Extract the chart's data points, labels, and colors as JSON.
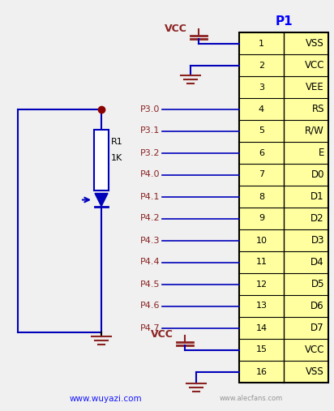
{
  "bg_color": "#f0f0f0",
  "wire_color": "#0000BB",
  "maroon": "#8B2222",
  "black": "#000000",
  "chip_fill": "#FFFFA0",
  "chip_border": "#000000",
  "chip_label": "P1",
  "pin_labels_left": [
    "P3.0",
    "P3.1",
    "P3.2",
    "P4.0",
    "P4.1",
    "P4.2",
    "P4.3",
    "P4.4",
    "P4.5",
    "P4.6",
    "P4.7"
  ],
  "pin_numbers": [
    1,
    2,
    3,
    4,
    5,
    6,
    7,
    8,
    9,
    10,
    11,
    12,
    13,
    14,
    15,
    16
  ],
  "pin_labels_right": [
    "VSS",
    "VCC",
    "VEE",
    "RS",
    "R/W",
    "E",
    "D0",
    "D1",
    "D2",
    "D3",
    "D4",
    "D5",
    "D6",
    "D7",
    "VCC",
    "VSS"
  ],
  "watermark": "www.wuyazi.com",
  "watermark2": "www.alecfans.com",
  "r1_label": "R1",
  "r1_value": "1K",
  "vcc_label": "VCC"
}
